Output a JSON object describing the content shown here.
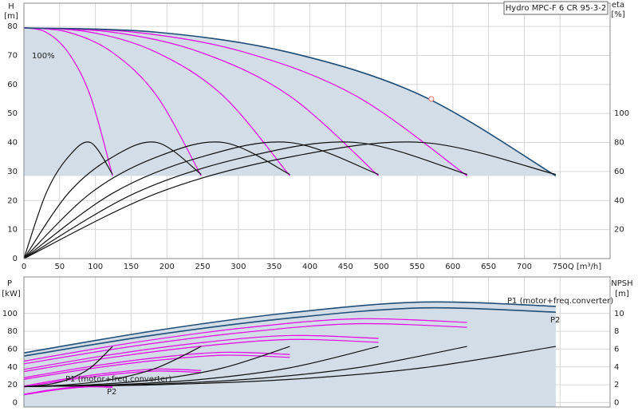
{
  "chart_data": [
    {
      "type": "line",
      "title": "Hydro MPC-F 6 CR 95-3-2",
      "y_label": "H",
      "y_unit": "[m]",
      "y2_label": "eta",
      "y2_unit": "[%]",
      "x_label": "Q [m³/h]",
      "annotations": [
        "100%"
      ],
      "xlim": [
        0,
        820
      ],
      "xticks": [
        0,
        50,
        100,
        150,
        200,
        250,
        300,
        350,
        400,
        450,
        500,
        550,
        600,
        650,
        700,
        750
      ],
      "ylim": [
        0,
        88
      ],
      "yticks": [
        0,
        10,
        20,
        30,
        40,
        50,
        60,
        70,
        80
      ],
      "y2lim": [
        0,
        176
      ],
      "y2ticks": [
        20,
        40,
        60,
        80,
        100
      ],
      "grid": true,
      "marker": {
        "x": 570,
        "y": 55,
        "color": "#e87070"
      },
      "series": [
        {
          "color": "#e800e8",
          "x": [
            0,
            31,
            62,
            93,
            124
          ],
          "values": [
            79.5,
            78,
            71,
            56,
            28.5
          ]
        },
        {
          "color": "#e800e8",
          "x": [
            0,
            62,
            124,
            186,
            248
          ],
          "values": [
            79.5,
            78,
            71,
            56,
            28.5
          ]
        },
        {
          "color": "#e800e8",
          "x": [
            0,
            93,
            186,
            279,
            372
          ],
          "values": [
            79.5,
            78,
            71,
            56,
            28.5
          ]
        },
        {
          "color": "#e800e8",
          "x": [
            0,
            124,
            248,
            372,
            496
          ],
          "values": [
            79.5,
            78,
            71,
            56,
            28.5
          ]
        },
        {
          "color": "#e800e8",
          "x": [
            0,
            155,
            310,
            465,
            620
          ],
          "values": [
            79.5,
            78,
            71,
            56,
            28.5
          ]
        },
        {
          "color": "#1f4e79",
          "x": [
            0,
            186,
            372,
            558,
            744
          ],
          "values": [
            79.5,
            78,
            71,
            56,
            28.5
          ]
        },
        {
          "color": "#111111",
          "axis": "y2",
          "x": [
            0,
            31,
            62,
            93,
            124
          ],
          "values": [
            0,
            45,
            70,
            80,
            58
          ]
        },
        {
          "color": "#111111",
          "axis": "y2",
          "x": [
            0,
            62,
            124,
            186,
            248
          ],
          "values": [
            0,
            45,
            70,
            80,
            58
          ]
        },
        {
          "color": "#111111",
          "axis": "y2",
          "x": [
            0,
            93,
            186,
            279,
            372
          ],
          "values": [
            0,
            45,
            70,
            80,
            58
          ]
        },
        {
          "color": "#111111",
          "axis": "y2",
          "x": [
            0,
            124,
            248,
            372,
            496
          ],
          "values": [
            0,
            45,
            70,
            80,
            58
          ]
        },
        {
          "color": "#111111",
          "axis": "y2",
          "x": [
            0,
            155,
            310,
            465,
            620
          ],
          "values": [
            0,
            45,
            70,
            80,
            58
          ]
        },
        {
          "color": "#111111",
          "axis": "y2",
          "x": [
            0,
            186,
            372,
            558,
            744
          ],
          "values": [
            0,
            45,
            70,
            80,
            58
          ]
        }
      ]
    },
    {
      "type": "line",
      "y_label": "P",
      "y_unit": "[kW]",
      "y2_label": "NPSH",
      "y2_unit": "[m]",
      "annotations": [
        "P1 (motor+freq.converter)",
        "P2",
        "P1 (motor+freq.converter)",
        "P2"
      ],
      "xlim": [
        0,
        820
      ],
      "xticks": [
        0,
        50,
        100,
        150,
        200,
        250,
        300,
        350,
        400,
        450,
        500,
        550,
        600,
        650,
        700,
        750
      ],
      "ylim": [
        -5,
        141
      ],
      "yticks": [
        0,
        20,
        40,
        60,
        80,
        100
      ],
      "y2lim": [
        -0.5,
        14.1
      ],
      "y2ticks": [
        0,
        2,
        4,
        6,
        8,
        10
      ],
      "grid": true,
      "series": [
        {
          "color": "#e800e8",
          "x": [
            0,
            31,
            62,
            93,
            124
          ],
          "values": [
            9.3,
            13.5,
            16.8,
            18.8,
            18
          ]
        },
        {
          "color": "#e800e8",
          "x": [
            0,
            62,
            124,
            186,
            248
          ],
          "values": [
            18.6,
            27,
            33.6,
            37.6,
            36
          ]
        },
        {
          "color": "#e800e8",
          "x": [
            0,
            93,
            186,
            279,
            372
          ],
          "values": [
            27.9,
            40.5,
            50.4,
            56.4,
            54
          ]
        },
        {
          "color": "#e800e8",
          "x": [
            0,
            124,
            248,
            372,
            496
          ],
          "values": [
            37.2,
            54,
            67.2,
            75.2,
            72
          ]
        },
        {
          "color": "#e800e8",
          "x": [
            0,
            155,
            310,
            465,
            620
          ],
          "values": [
            46.5,
            67.5,
            84,
            94,
            90
          ]
        },
        {
          "color": "#1f4e79",
          "x": [
            0,
            186,
            372,
            558,
            744
          ],
          "values": [
            55.8,
            81,
            100.8,
            112.8,
            108
          ]
        },
        {
          "color": "#e800e8",
          "x": [
            0,
            31,
            62,
            93,
            124
          ],
          "values": [
            8.7,
            12.7,
            15.8,
            17.7,
            16.9
          ]
        },
        {
          "color": "#e800e8",
          "x": [
            0,
            62,
            124,
            186,
            248
          ],
          "values": [
            17.4,
            25.4,
            31.6,
            35.4,
            33.8
          ]
        },
        {
          "color": "#e800e8",
          "x": [
            0,
            93,
            186,
            279,
            372
          ],
          "values": [
            26.1,
            38.1,
            47.4,
            53.1,
            50.7
          ]
        },
        {
          "color": "#e800e8",
          "x": [
            0,
            124,
            248,
            372,
            496
          ],
          "values": [
            34.8,
            50.8,
            63.2,
            70.8,
            67.6
          ]
        },
        {
          "color": "#e800e8",
          "x": [
            0,
            155,
            310,
            465,
            620
          ],
          "values": [
            43.5,
            63.5,
            79,
            88.5,
            84.5
          ]
        },
        {
          "color": "#1f4e79",
          "x": [
            0,
            186,
            372,
            558,
            744
          ],
          "values": [
            52.2,
            76.2,
            94.8,
            106.2,
            101.4
          ]
        },
        {
          "color": "#111111",
          "axis": "y2",
          "x": [
            0,
            31,
            62,
            93,
            124
          ],
          "values": [
            1.8,
            2,
            2.6,
            3.9,
            6.3
          ]
        },
        {
          "color": "#111111",
          "axis": "y2",
          "x": [
            0,
            62,
            124,
            186,
            248
          ],
          "values": [
            1.8,
            2,
            2.6,
            3.9,
            6.3
          ]
        },
        {
          "color": "#111111",
          "axis": "y2",
          "x": [
            0,
            93,
            186,
            279,
            372
          ],
          "values": [
            1.8,
            2,
            2.6,
            3.9,
            6.3
          ]
        },
        {
          "color": "#111111",
          "axis": "y2",
          "x": [
            0,
            124,
            248,
            372,
            496
          ],
          "values": [
            1.8,
            2,
            2.6,
            3.9,
            6.3
          ]
        },
        {
          "color": "#111111",
          "axis": "y2",
          "x": [
            0,
            155,
            310,
            465,
            620
          ],
          "values": [
            1.8,
            2,
            2.6,
            3.9,
            6.3
          ]
        },
        {
          "color": "#111111",
          "axis": "y2",
          "x": [
            0,
            186,
            372,
            558,
            744
          ],
          "values": [
            1.8,
            2,
            2.6,
            3.9,
            6.3
          ]
        }
      ]
    }
  ]
}
